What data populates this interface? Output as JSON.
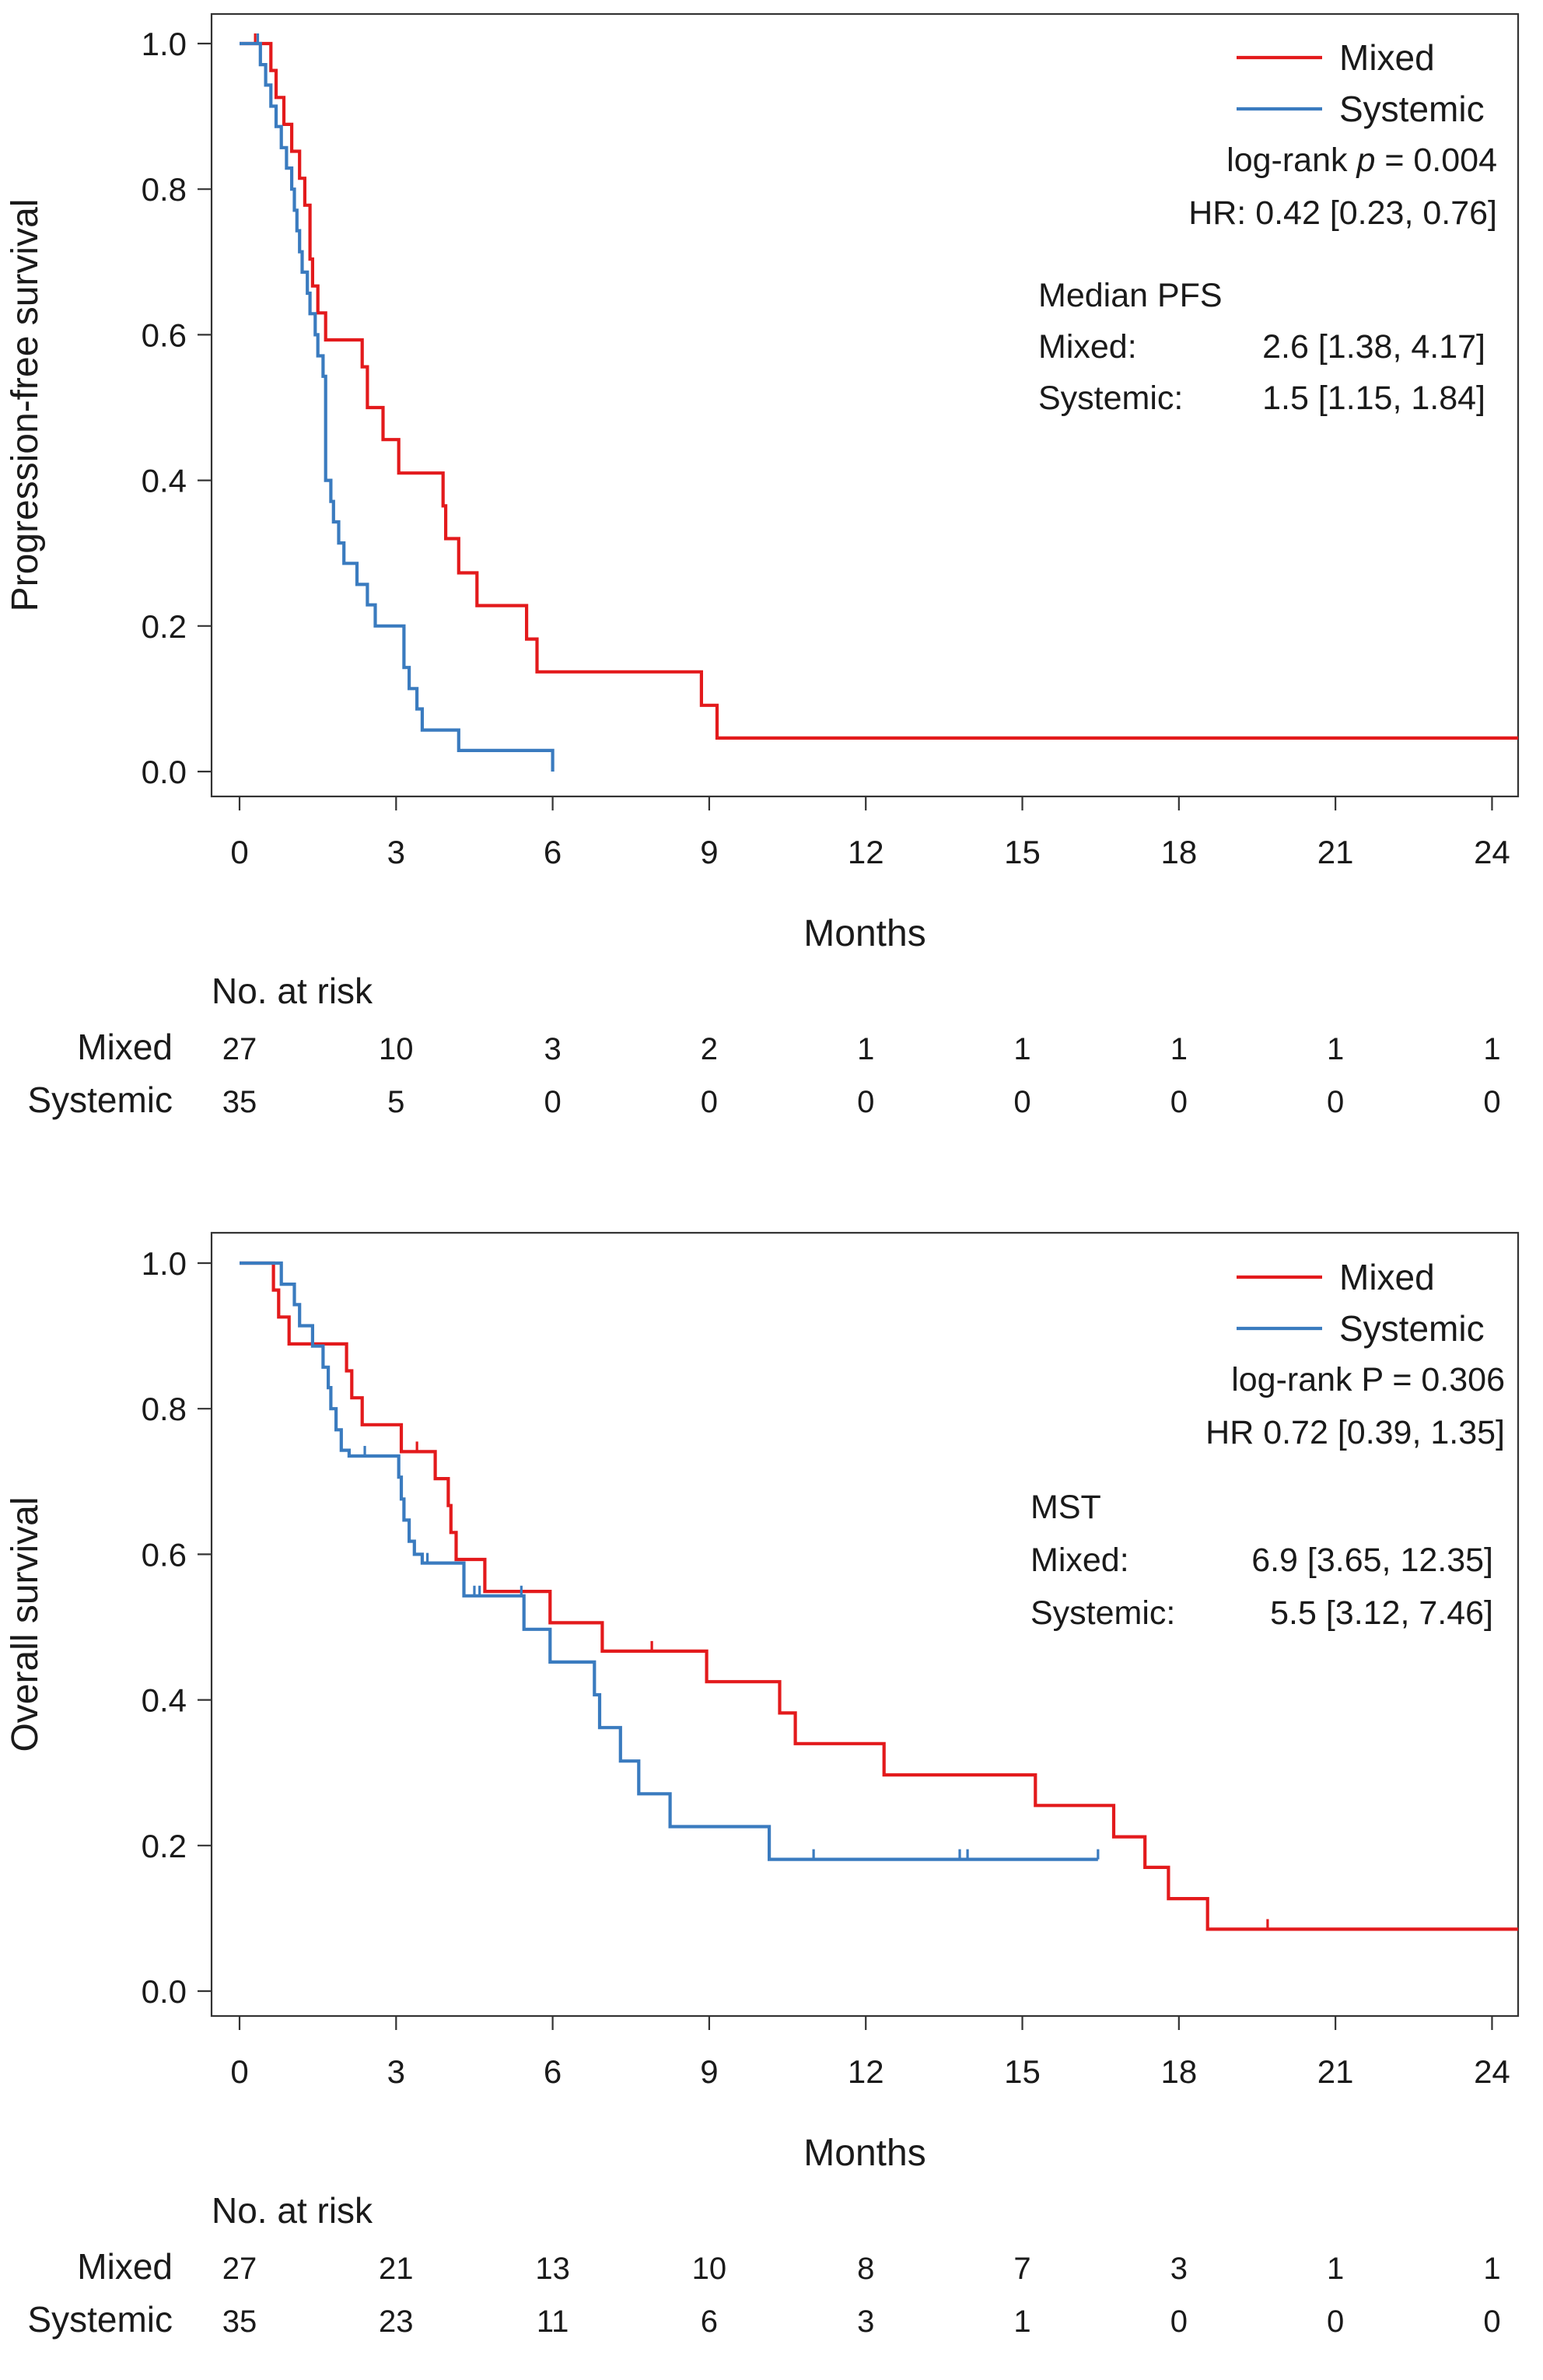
{
  "chart_data": [
    {
      "type": "line",
      "title": "",
      "xlabel": "Months",
      "ylabel": "Progression-free survival",
      "xlim": [
        0,
        24.5
      ],
      "ylim": [
        0,
        1.0
      ],
      "xticks": [
        0,
        3,
        6,
        9,
        12,
        15,
        18,
        21,
        24
      ],
      "yticks": [
        "0.0",
        "0.2",
        "0.4",
        "0.6",
        "0.8",
        "1.0"
      ],
      "legend_position": "top-right",
      "series": [
        {
          "name": "Mixed",
          "color": "#e31a1c",
          "x": [
            0,
            0.35,
            0.6,
            0.7,
            0.85,
            1.0,
            1.15,
            1.25,
            1.35,
            1.4,
            1.5,
            1.65,
            1.75,
            2.35,
            2.45,
            2.75,
            3.05,
            3.9,
            3.95,
            4.2,
            4.55,
            5.5,
            5.7,
            8.85,
            9.15,
            24.5
          ],
          "y": [
            1.0,
            1.0,
            0.963,
            0.926,
            0.889,
            0.852,
            0.815,
            0.778,
            0.704,
            0.667,
            0.63,
            0.593,
            0.593,
            0.556,
            0.5,
            0.456,
            0.41,
            0.365,
            0.32,
            0.273,
            0.228,
            0.182,
            0.137,
            0.091,
            0.046,
            0.046
          ],
          "censor_x": [
            0.3
          ]
        },
        {
          "name": "Systemic",
          "color": "#3a7bbf",
          "x": [
            0,
            0.4,
            0.5,
            0.6,
            0.7,
            0.8,
            0.9,
            1.0,
            1.05,
            1.1,
            1.15,
            1.2,
            1.3,
            1.35,
            1.45,
            1.5,
            1.6,
            1.65,
            1.75,
            1.8,
            1.9,
            2.0,
            2.25,
            2.45,
            2.6,
            3.15,
            3.25,
            3.4,
            3.5,
            4.2,
            5.95,
            6.0
          ],
          "y": [
            1.0,
            0.971,
            0.943,
            0.914,
            0.886,
            0.857,
            0.829,
            0.8,
            0.771,
            0.743,
            0.714,
            0.686,
            0.657,
            0.629,
            0.6,
            0.571,
            0.543,
            0.4,
            0.371,
            0.343,
            0.314,
            0.286,
            0.257,
            0.229,
            0.2,
            0.143,
            0.114,
            0.086,
            0.057,
            0.029,
            0.029,
            0.0
          ],
          "censor_x": [
            0.35
          ]
        }
      ],
      "annotations": {
        "test_prefix": "log-rank ",
        "test_symbol": "p",
        "test_value": " = 0.004",
        "hr": "HR: 0.42 [0.23, 0.76]",
        "median_title": "Median  PFS",
        "median_rows": [
          {
            "label": "Mixed:",
            "value": "2.6 [1.38, 4.17]"
          },
          {
            "label": "Systemic:",
            "value": "1.5 [1.15, 1.84]"
          }
        ]
      },
      "risk_table": {
        "title": "No. at risk",
        "rows": [
          {
            "name": "Mixed",
            "counts": [
              "27",
              "10",
              "3",
              "2",
              "1",
              "1",
              "1",
              "1",
              "1"
            ]
          },
          {
            "name": "Systemic",
            "counts": [
              "35",
              "5",
              "0",
              "0",
              "0",
              "0",
              "0",
              "0",
              "0"
            ]
          }
        ]
      }
    },
    {
      "type": "line",
      "title": "",
      "xlabel": "Months",
      "ylabel": "Overall survival",
      "xlim": [
        0,
        24.5
      ],
      "ylim": [
        0,
        1.0
      ],
      "xticks": [
        0,
        3,
        6,
        9,
        12,
        15,
        18,
        21,
        24
      ],
      "yticks": [
        "0.0",
        "0.2",
        "0.4",
        "0.6",
        "0.8",
        "1.0"
      ],
      "legend_position": "top-right",
      "series": [
        {
          "name": "Mixed",
          "color": "#e31a1c",
          "x": [
            0,
            0.65,
            0.75,
            0.95,
            2.05,
            2.15,
            2.35,
            2.55,
            3.1,
            3.55,
            3.75,
            4.0,
            4.05,
            4.15,
            4.7,
            5.95,
            6.95,
            8.95,
            10.35,
            10.65,
            12.35,
            15.25,
            16.75,
            17.35,
            17.8,
            18.55,
            24.5
          ],
          "y": [
            1.0,
            0.963,
            0.926,
            0.889,
            0.852,
            0.815,
            0.778,
            0.778,
            0.741,
            0.741,
            0.704,
            0.667,
            0.63,
            0.593,
            0.549,
            0.506,
            0.467,
            0.425,
            0.382,
            0.34,
            0.297,
            0.255,
            0.212,
            0.17,
            0.127,
            0.085,
            0.085
          ],
          "censor_x": [
            3.4,
            7.9,
            19.7
          ]
        },
        {
          "name": "Systemic",
          "color": "#3a7bbf",
          "x": [
            0,
            0.8,
            1.05,
            1.15,
            1.4,
            1.6,
            1.7,
            1.75,
            1.85,
            1.95,
            2.1,
            3.05,
            3.1,
            3.15,
            3.25,
            3.35,
            3.5,
            3.6,
            4.3,
            5.45,
            5.95,
            6.8,
            6.9,
            7.3,
            7.65,
            8.25,
            9.95,
            10.15,
            10.35,
            16.45
          ],
          "y": [
            1.0,
            0.971,
            0.943,
            0.914,
            0.886,
            0.857,
            0.829,
            0.8,
            0.771,
            0.743,
            0.735,
            0.706,
            0.676,
            0.647,
            0.618,
            0.6,
            0.588,
            0.588,
            0.543,
            0.497,
            0.452,
            0.407,
            0.362,
            0.316,
            0.271,
            0.226,
            0.226,
            0.181,
            0.181,
            0.181
          ],
          "censor_x": [
            2.4,
            3.6,
            4.5,
            4.6,
            5.4,
            11.0,
            13.8,
            13.95,
            16.45
          ]
        }
      ],
      "annotations": {
        "test_prefix": "log-rank  P = 0.306",
        "test_symbol": "",
        "test_value": "",
        "hr": "HR 0.72 [0.39, 1.35]",
        "median_title": "MST",
        "median_rows": [
          {
            "label": "Mixed:",
            "value": "6.9 [3.65, 12.35]"
          },
          {
            "label": "Systemic:",
            "value": "5.5 [3.12,   7.46]"
          }
        ]
      },
      "risk_table": {
        "title": "No. at risk",
        "rows": [
          {
            "name": "Mixed",
            "counts": [
              "27",
              "21",
              "13",
              "10",
              "8",
              "7",
              "3",
              "1",
              "1"
            ]
          },
          {
            "name": "Systemic",
            "counts": [
              "35",
              "23",
              "11",
              "6",
              "3",
              "1",
              "0",
              "0",
              "0"
            ]
          }
        ]
      }
    }
  ]
}
